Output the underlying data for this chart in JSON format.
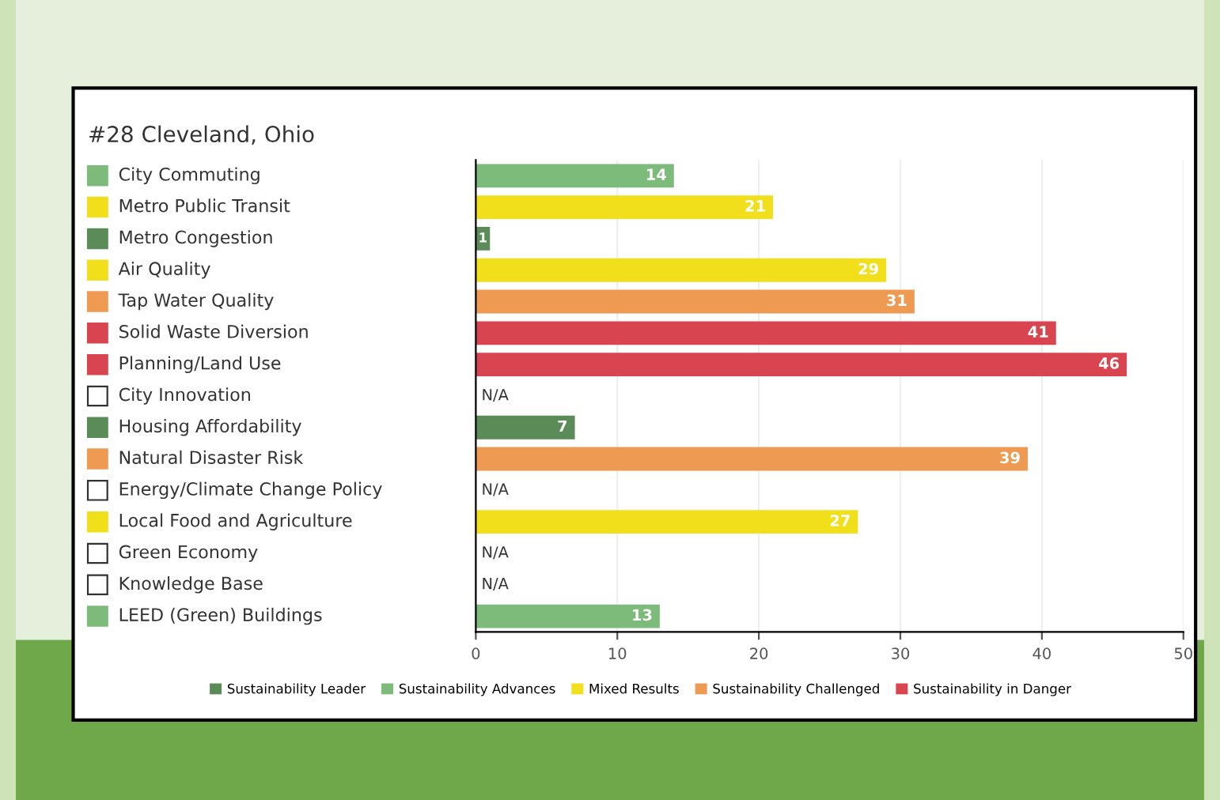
{
  "chart_data": {
    "type": "bar",
    "orientation": "horizontal",
    "title": "#28 Cleveland, Ohio",
    "categories": [
      "City Commuting",
      "Metro Public Transit",
      "Metro Congestion",
      "Air Quality",
      "Tap Water Quality",
      "Solid Waste Diversion",
      "Planning/Land Use",
      "City Innovation",
      "Housing Affordability",
      "Natural Disaster Risk",
      "Energy/Climate Change Policy",
      "Local Food and Agriculture",
      "Green Economy",
      "Knowledge Base",
      "LEED (Green) Buildings"
    ],
    "series": [
      {
        "name": "Sustainability Leader",
        "color": "#5b8c57",
        "values": [
          null,
          null,
          1,
          null,
          null,
          null,
          null,
          null,
          7,
          null,
          null,
          null,
          null,
          null,
          null
        ],
        "value_labels": [
          null,
          null,
          "1",
          null,
          null,
          null,
          null,
          null,
          "7",
          null,
          null,
          null,
          null,
          null,
          null
        ]
      },
      {
        "name": "Sustainability Advances",
        "color": "#7dbb7a",
        "values": [
          14,
          null,
          null,
          null,
          null,
          null,
          null,
          null,
          null,
          null,
          null,
          null,
          null,
          null,
          13
        ],
        "value_labels": [
          "14",
          null,
          null,
          null,
          null,
          null,
          null,
          null,
          null,
          null,
          null,
          null,
          null,
          null,
          "13"
        ]
      },
      {
        "name": "Mixed Results",
        "color": "#f1df1c",
        "values": [
          null,
          21,
          null,
          29,
          null,
          null,
          null,
          null,
          null,
          null,
          null,
          27,
          null,
          null,
          null
        ],
        "value_labels": [
          null,
          "21",
          null,
          "29",
          null,
          null,
          null,
          null,
          null,
          null,
          null,
          "27",
          null,
          null,
          null
        ]
      },
      {
        "name": "Sustainability Challenged",
        "color": "#ee9a52",
        "values": [
          null,
          null,
          null,
          null,
          31,
          null,
          null,
          null,
          null,
          39,
          null,
          null,
          null,
          null,
          null
        ],
        "value_labels": [
          null,
          null,
          null,
          null,
          "31",
          null,
          null,
          null,
          null,
          "39",
          null,
          null,
          null,
          null,
          null
        ]
      },
      {
        "name": "Sustainability in Danger",
        "color": "#d8444f",
        "values": [
          null,
          null,
          null,
          null,
          null,
          41,
          46,
          null,
          null,
          null,
          null,
          null,
          null,
          null,
          null
        ],
        "value_labels": [
          null,
          null,
          null,
          null,
          null,
          "41",
          "46",
          null,
          null,
          null,
          null,
          null,
          null,
          null,
          null
        ]
      }
    ],
    "annotations": [
      "N/A",
      "N/A",
      "N/A",
      "N/A"
    ],
    "xlim": [
      0,
      50
    ],
    "xticks": [
      0,
      10,
      20,
      30,
      40,
      50
    ],
    "legend": "bottom",
    "grid": "x"
  }
}
